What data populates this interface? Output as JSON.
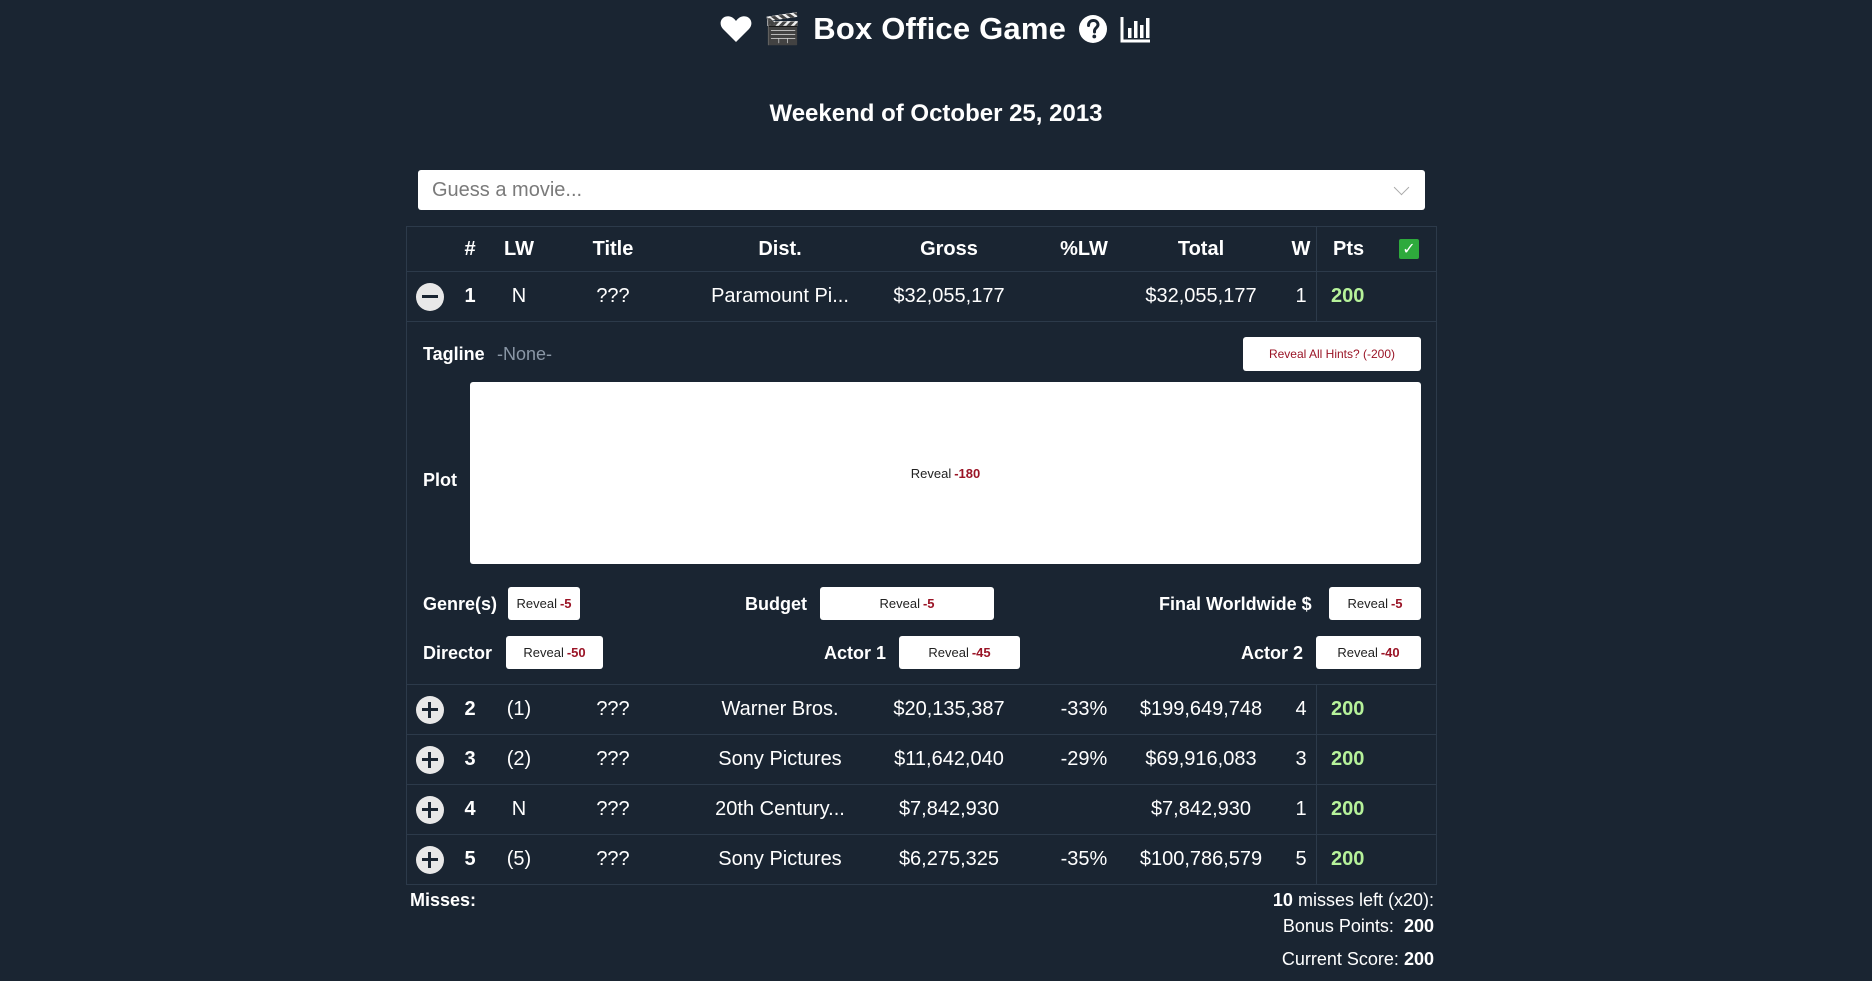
{
  "header": {
    "title": "Box Office Game",
    "clapper": "🎬",
    "icons": [
      "heart-icon",
      "clapper-icon",
      "help-icon",
      "stats-icon"
    ]
  },
  "weekend": "Weekend of October 25, 2013",
  "search": {
    "placeholder": "Guess a movie..."
  },
  "table": {
    "headers": {
      "rank": "#",
      "lw": "LW",
      "title": "Title",
      "dist": "Dist.",
      "gross": "Gross",
      "plw": "%LW",
      "total": "Total",
      "w": "W",
      "pts": "Pts"
    },
    "rows": [
      {
        "rank": "1",
        "lw": "N",
        "title": "???",
        "dist": "Paramount Pi...",
        "gross": "$32,055,177",
        "plw": "",
        "total": "$32,055,177",
        "w": "1",
        "pts": "200",
        "expanded": true
      },
      {
        "rank": "2",
        "lw": "(1)",
        "title": "???",
        "dist": "Warner Bros.",
        "gross": "$20,135,387",
        "plw": "-33%",
        "total": "$199,649,748",
        "w": "4",
        "pts": "200",
        "expanded": false
      },
      {
        "rank": "3",
        "lw": "(2)",
        "title": "???",
        "dist": "Sony Pictures",
        "gross": "$11,642,040",
        "plw": "-29%",
        "total": "$69,916,083",
        "w": "3",
        "pts": "200",
        "expanded": false
      },
      {
        "rank": "4",
        "lw": "N",
        "title": "???",
        "dist": "20th Century...",
        "gross": "$7,842,930",
        "plw": "",
        "total": "$7,842,930",
        "w": "1",
        "pts": "200",
        "expanded": false
      },
      {
        "rank": "5",
        "lw": "(5)",
        "title": "???",
        "dist": "Sony Pictures",
        "gross": "$6,275,325",
        "plw": "-35%",
        "total": "$100,786,579",
        "w": "5",
        "pts": "200",
        "expanded": false
      }
    ]
  },
  "hints": {
    "tagline_label": "Tagline",
    "tagline_value": "-None-",
    "reveal_all": "Reveal All Hints? (-200)",
    "plot_label": "Plot",
    "reveal": "Reveal",
    "plot_cost": "-180",
    "genres_label": "Genre(s)",
    "genres_cost": "-5",
    "budget_label": "Budget",
    "budget_cost": "-5",
    "worldwide_label": "Final Worldwide $",
    "worldwide_cost": "-5",
    "director_label": "Director",
    "director_cost": "-50",
    "actor1_label": "Actor 1",
    "actor1_cost": "-45",
    "actor2_label": "Actor 2",
    "actor2_cost": "-40"
  },
  "footer": {
    "misses_label": "Misses:",
    "misses_left_count": "10",
    "misses_left_text": "misses left (x20):",
    "bonus_label": "Bonus Points:",
    "bonus_value": "200",
    "score_label": "Current Score:",
    "score_value": "200"
  },
  "colors": {
    "background": "#1a2532",
    "points": "#b6f29a",
    "cost": "#9a1426",
    "check": "#2eaa3c"
  }
}
